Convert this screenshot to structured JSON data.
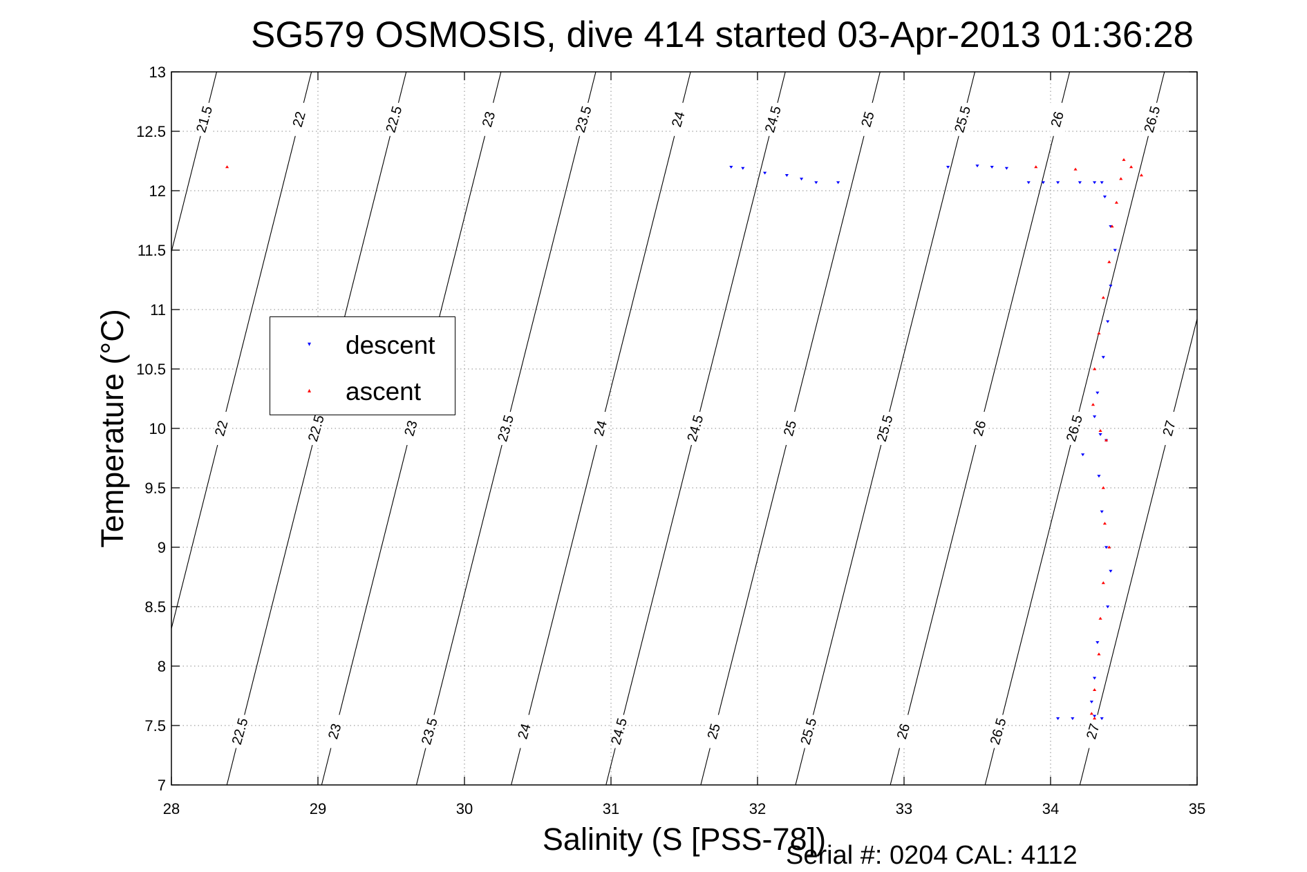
{
  "chart_data": {
    "type": "scatter",
    "title": "SG579 OSMOSIS, dive 414 started 03-Apr-2013 01:36:28",
    "xlabel": "Salinity (S [PSS-78])",
    "ylabel": "Temperature (°C)",
    "xlim": [
      28,
      35
    ],
    "ylim": [
      7,
      13
    ],
    "xticks": [
      "28",
      "29",
      "30",
      "31",
      "32",
      "33",
      "34",
      "35"
    ],
    "yticks": [
      "7",
      "7.5",
      "8",
      "8.5",
      "9",
      "9.5",
      "10",
      "10.5",
      "11",
      "11.5",
      "12",
      "12.5",
      "13"
    ],
    "grid": true,
    "legend_position": "middle-left",
    "footer": "Serial #: 0204  CAL: 4112",
    "density_contours": {
      "levels": [
        "21.5",
        "22",
        "22.5",
        "23",
        "23.5",
        "24",
        "24.5",
        "25",
        "25.5",
        "26",
        "26.5",
        "27"
      ],
      "color": "#000000"
    },
    "series": [
      {
        "name": "descent",
        "color": "#0000ff",
        "marker": "triangle-down",
        "points": [
          [
            31.82,
            12.2
          ],
          [
            31.9,
            12.19
          ],
          [
            32.05,
            12.15
          ],
          [
            32.2,
            12.13
          ],
          [
            32.3,
            12.1
          ],
          [
            32.4,
            12.07
          ],
          [
            32.55,
            12.07
          ],
          [
            33.3,
            12.2
          ],
          [
            33.5,
            12.21
          ],
          [
            33.6,
            12.2
          ],
          [
            33.7,
            12.19
          ],
          [
            33.85,
            12.07
          ],
          [
            33.95,
            12.07
          ],
          [
            34.05,
            12.07
          ],
          [
            34.2,
            12.07
          ],
          [
            34.3,
            12.07
          ],
          [
            34.35,
            12.07
          ],
          [
            34.37,
            11.95
          ],
          [
            34.41,
            11.7
          ],
          [
            34.44,
            11.5
          ],
          [
            34.41,
            11.2
          ],
          [
            34.39,
            10.9
          ],
          [
            34.36,
            10.6
          ],
          [
            34.32,
            10.3
          ],
          [
            34.3,
            10.1
          ],
          [
            34.34,
            9.95
          ],
          [
            34.22,
            9.78
          ],
          [
            34.38,
            9.9
          ],
          [
            34.33,
            9.6
          ],
          [
            34.35,
            9.3
          ],
          [
            34.38,
            9.0
          ],
          [
            34.41,
            8.8
          ],
          [
            34.39,
            8.5
          ],
          [
            34.32,
            8.2
          ],
          [
            34.3,
            7.9
          ],
          [
            34.28,
            7.7
          ],
          [
            34.3,
            7.58
          ],
          [
            34.35,
            7.56
          ],
          [
            34.05,
            7.56
          ],
          [
            34.15,
            7.56
          ]
        ]
      },
      {
        "name": "ascent",
        "color": "#ff0000",
        "marker": "triangle-up",
        "points": [
          [
            28.38,
            12.2
          ],
          [
            33.9,
            12.2
          ],
          [
            34.17,
            12.18
          ],
          [
            34.5,
            12.26
          ],
          [
            34.55,
            12.2
          ],
          [
            34.62,
            12.13
          ],
          [
            34.48,
            12.1
          ],
          [
            34.45,
            11.9
          ],
          [
            34.42,
            11.7
          ],
          [
            34.4,
            11.4
          ],
          [
            34.36,
            11.1
          ],
          [
            34.33,
            10.8
          ],
          [
            34.3,
            10.5
          ],
          [
            34.29,
            10.2
          ],
          [
            34.34,
            9.98
          ],
          [
            34.38,
            9.9
          ],
          [
            34.36,
            9.5
          ],
          [
            34.37,
            9.2
          ],
          [
            34.4,
            9.0
          ],
          [
            34.36,
            8.7
          ],
          [
            34.34,
            8.4
          ],
          [
            34.33,
            8.1
          ],
          [
            34.3,
            7.8
          ],
          [
            34.28,
            7.6
          ],
          [
            34.3,
            7.56
          ]
        ]
      }
    ]
  }
}
